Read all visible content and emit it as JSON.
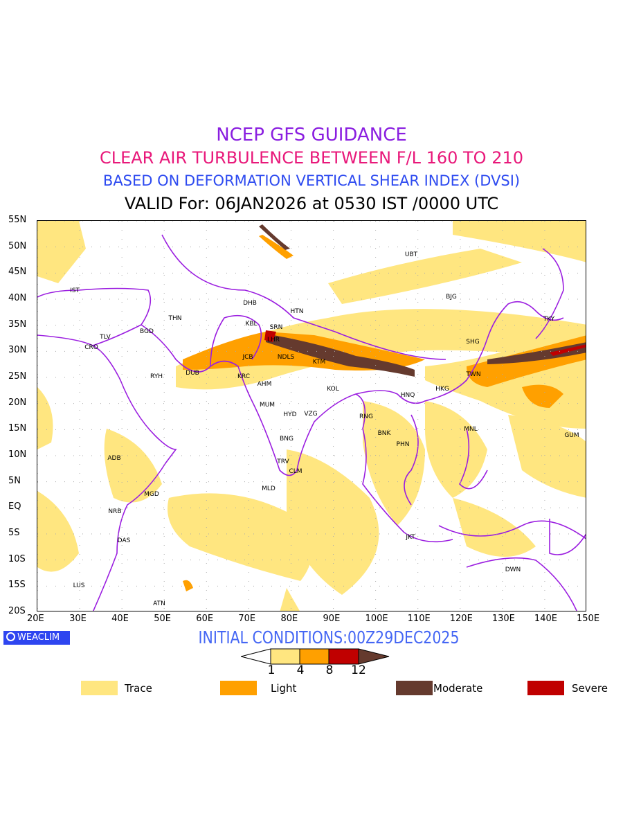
{
  "titles": {
    "line1": "NCEP GFS GUIDANCE",
    "line2": "CLEAR AIR TURBULENCE BETWEEN F/L 160 TO 210",
    "line3": "BASED ON DEFORMATION VERTICAL SHEAR INDEX (DVSI)",
    "line4": "VALID For: 06JAN2026 at 0530 IST /0000 UTC"
  },
  "axes": {
    "lat_labels": [
      "55N",
      "50N",
      "45N",
      "40N",
      "35N",
      "30N",
      "25N",
      "20N",
      "15N",
      "10N",
      "5N",
      "EQ",
      "5S",
      "10S",
      "15S",
      "20S"
    ],
    "lon_labels": [
      "20E",
      "30E",
      "40E",
      "50E",
      "60E",
      "70E",
      "80E",
      "90E",
      "100E",
      "110E",
      "120E",
      "130E",
      "140E",
      "150E"
    ]
  },
  "cities": [
    "IST",
    "TLV",
    "CRO",
    "BGD",
    "THN",
    "RYH",
    "DUB",
    "DHB",
    "KBL",
    "SRN",
    "LHR",
    "HTN",
    "JCB",
    "NDLS",
    "KTM",
    "KRC",
    "AHM",
    "KOL",
    "MUM",
    "HYD",
    "VZG",
    "BNG",
    "TRV",
    "CLM",
    "MLD",
    "ADB",
    "MGD",
    "NRB",
    "DAS",
    "LUS",
    "ATN",
    "UBT",
    "BJG",
    "TKY",
    "SHG",
    "TWN",
    "HKG",
    "HNQ",
    "RNG",
    "BNK",
    "PHN",
    "MNL",
    "GUM",
    "JKT",
    "DWN"
  ],
  "brand": "WEACLIM",
  "initial_conditions": "INITIAL CONDITIONS:00Z29DEC2025",
  "colorbar": {
    "ticks": [
      "1",
      "4",
      "8",
      "12"
    ],
    "colors": [
      "#ffe680",
      "#ffa000",
      "#c00000",
      "#653a2e"
    ]
  },
  "legend": [
    {
      "label": "Trace",
      "color": "#ffe680"
    },
    {
      "label": "Light",
      "color": "#ffa000"
    },
    {
      "label": "Moderate",
      "color": "#653a2e"
    },
    {
      "label": "Severe",
      "color": "#c00000"
    }
  ],
  "colors": {
    "border": "#9b1ee0",
    "trace": "#ffe680",
    "light": "#ffa000",
    "moderate": "#653a2e",
    "severe": "#c00000"
  }
}
